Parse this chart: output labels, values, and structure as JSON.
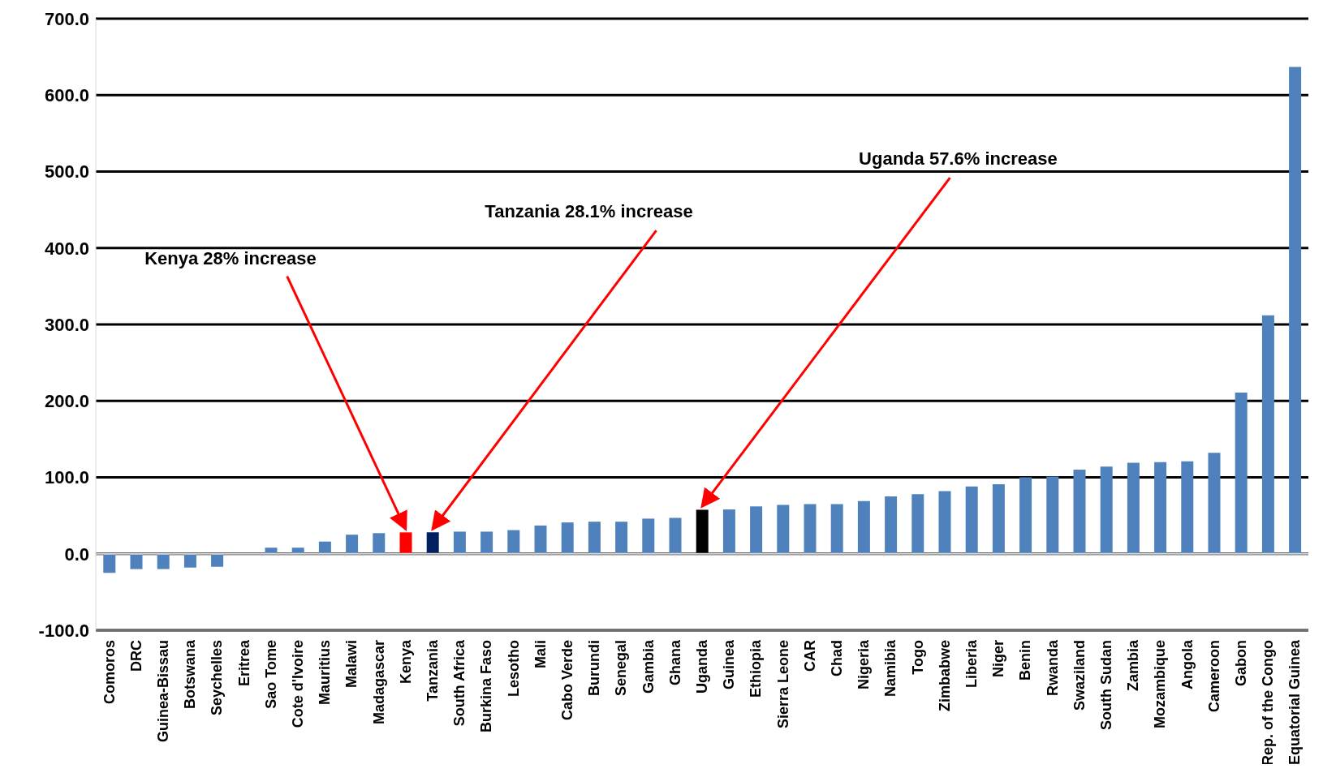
{
  "chart_data": {
    "type": "bar",
    "categories": [
      "Comoros",
      "DRC",
      "Guinea-Bissau",
      "Botswana",
      "Seychelles",
      "Eritrea",
      "Sao Tome",
      "Cote d'Ivoire",
      "Mauritius",
      "Malawi",
      "Madagascar",
      "Kenya",
      "Tanzania",
      "South Africa",
      "Burkina Faso",
      "Lesotho",
      "Mali",
      "Cabo Verde",
      "Burundi",
      "Senegal",
      "Gambia",
      "Ghana",
      "Uganda",
      "Guinea",
      "Ethiopia",
      "Sierra Leone",
      "CAR",
      "Chad",
      "Nigeria",
      "Namibia",
      "Togo",
      "Zimbabwe",
      "Liberia",
      "Niger",
      "Benin",
      "Rwanda",
      "Swaziland",
      "South Sudan",
      "Zambia",
      "Mozambique",
      "Angola",
      "Cameroon",
      "Gabon",
      "Rep. of the Congo",
      "Equatorial Guinea"
    ],
    "values": [
      -25,
      -20,
      -20,
      -18,
      -17,
      0,
      8,
      8,
      16,
      25,
      27,
      28,
      28.1,
      29,
      29,
      31,
      37,
      41,
      42,
      42,
      46,
      47,
      57.6,
      58,
      62,
      64,
      65,
      65,
      69,
      75,
      78,
      82,
      88,
      91,
      100,
      101,
      110,
      114,
      119,
      120,
      121,
      132,
      211,
      312,
      637
    ],
    "colors": [
      "#4f81bd",
      "#4f81bd",
      "#4f81bd",
      "#4f81bd",
      "#4f81bd",
      "#4f81bd",
      "#4f81bd",
      "#4f81bd",
      "#4f81bd",
      "#4f81bd",
      "#4f81bd",
      "#ff0000",
      "#002060",
      "#4f81bd",
      "#4f81bd",
      "#4f81bd",
      "#4f81bd",
      "#4f81bd",
      "#4f81bd",
      "#4f81bd",
      "#4f81bd",
      "#4f81bd",
      "#000000",
      "#4f81bd",
      "#4f81bd",
      "#4f81bd",
      "#4f81bd",
      "#4f81bd",
      "#4f81bd",
      "#4f81bd",
      "#4f81bd",
      "#4f81bd",
      "#4f81bd",
      "#4f81bd",
      "#4f81bd",
      "#4f81bd",
      "#4f81bd",
      "#4f81bd",
      "#4f81bd",
      "#4f81bd",
      "#4f81bd",
      "#4f81bd",
      "#4f81bd",
      "#4f81bd",
      "#4f81bd"
    ],
    "ylim": [
      -100,
      700
    ],
    "yticks": [
      {
        "value": -100,
        "label": "-100.0"
      },
      {
        "value": 0,
        "label": "0.0"
      },
      {
        "value": 100,
        "label": "100.0"
      },
      {
        "value": 200,
        "label": "200.0"
      },
      {
        "value": 300,
        "label": "300.0"
      },
      {
        "value": 400,
        "label": "400.0"
      },
      {
        "value": 500,
        "label": "500.0"
      },
      {
        "value": 600,
        "label": "600.0"
      },
      {
        "value": 700,
        "label": "700.0"
      }
    ],
    "grid": "y",
    "legend": false,
    "annotations": [
      {
        "text": "Kenya 28% increase",
        "x": "Kenya",
        "y": 28
      },
      {
        "text": "Tanzania 28.1% increase",
        "x": "Tanzania",
        "y": 28.1
      },
      {
        "text": "Uganda 57.6% increase",
        "x": "Uganda",
        "y": 57.6
      }
    ]
  }
}
